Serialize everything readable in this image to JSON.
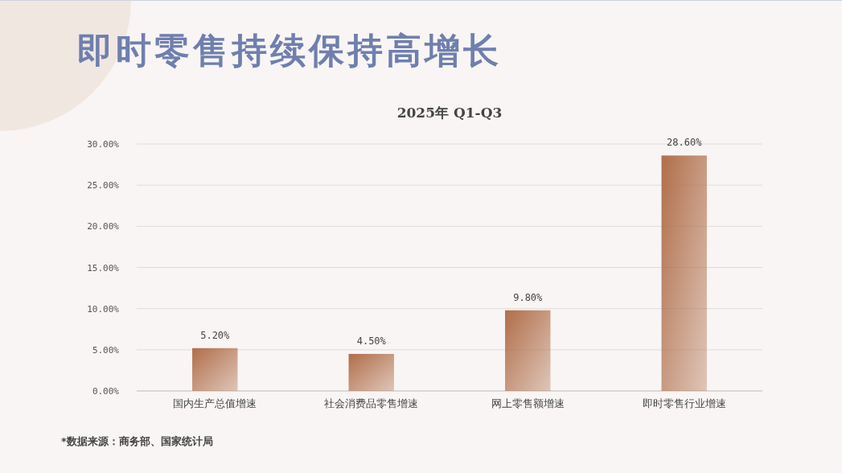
{
  "chart_data": {
    "type": "bar",
    "title": "即时零售持续保持高增长",
    "subtitle": "2025年 Q1-Q3",
    "categories": [
      "国内生产总值增速",
      "社会消费品零售增速",
      "网上零售额增速",
      "即时零售行业增速"
    ],
    "values": [
      5.2,
      4.5,
      9.8,
      28.6
    ],
    "value_labels": [
      "5.20%",
      "4.50%",
      "9.80%",
      "28.60%"
    ],
    "color": "#b06e4a",
    "ylim": [
      0,
      30
    ],
    "yticks": [
      {
        "value": 0,
        "label": "0.00%"
      },
      {
        "value": 5,
        "label": "5.00%"
      },
      {
        "value": 10,
        "label": "10.00%"
      },
      {
        "value": 15,
        "label": "15.00%"
      },
      {
        "value": 20,
        "label": "20.00%"
      },
      {
        "value": 25,
        "label": "25.00%"
      },
      {
        "value": 30,
        "label": "30.00%"
      }
    ],
    "grid": "y",
    "annotations": [
      "*数据来源：商务部、国家统计局"
    ]
  }
}
